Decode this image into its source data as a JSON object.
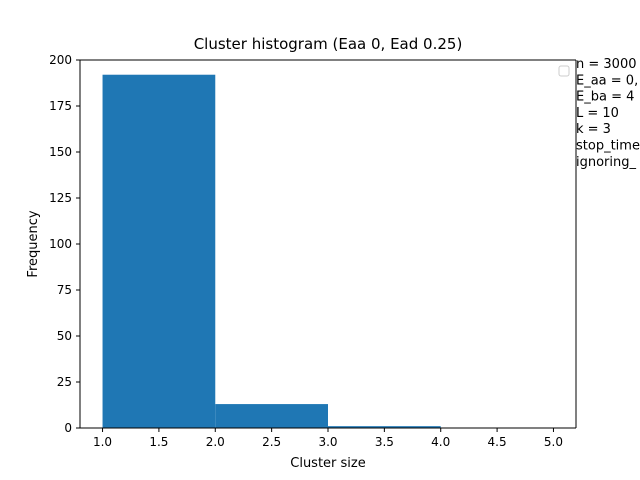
{
  "chart_data": {
    "type": "bar",
    "title": "Cluster histogram (Eaa 0, Ead 0.25)",
    "xlabel": "Cluster size",
    "ylabel": "Frequency",
    "xlim": [
      0.8,
      5.2
    ],
    "ylim": [
      0,
      200
    ],
    "xticks": [
      "1.0",
      "1.5",
      "2.0",
      "2.5",
      "3.0",
      "3.5",
      "4.0",
      "4.5",
      "5.0"
    ],
    "yticks": [
      "0",
      "25",
      "50",
      "75",
      "100",
      "125",
      "150",
      "175",
      "200"
    ],
    "bins": [
      {
        "from": 1,
        "to": 2,
        "value": 192
      },
      {
        "from": 2,
        "to": 3,
        "value": 13
      },
      {
        "from": 3,
        "to": 4,
        "value": 1
      },
      {
        "from": 4,
        "to": 5,
        "value": 0
      }
    ],
    "bar_color": "#1f77b4",
    "grid": false,
    "legend": {
      "placement": "upper-right",
      "entries": [
        "n = 3000",
        "E_aa = 0,",
        "E_ba = 4",
        "L = 10",
        "k = 3",
        "stop_time",
        "ignoring_"
      ]
    }
  }
}
